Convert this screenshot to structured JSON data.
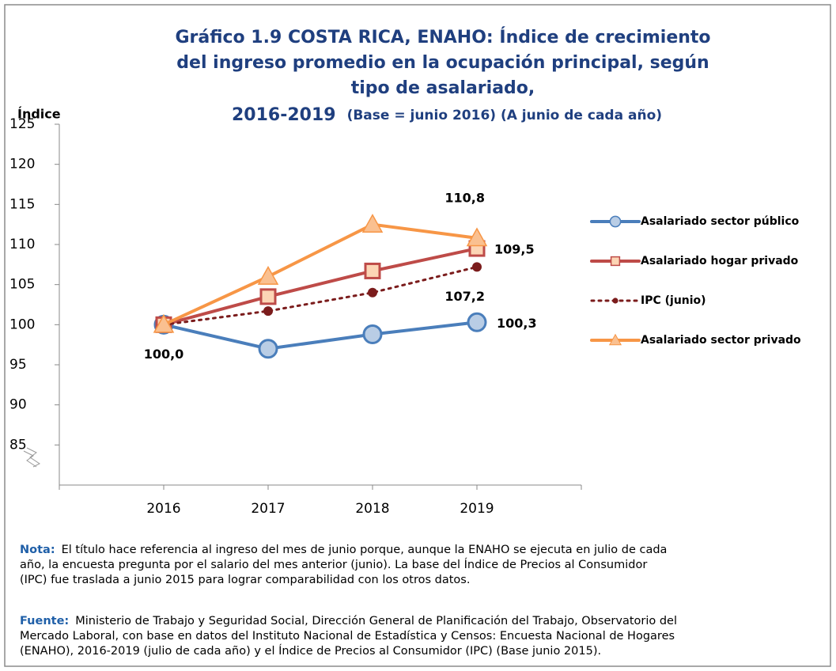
{
  "chart_data": {
    "type": "line",
    "title": [
      "Gráfico 1.9  COSTA RICA, ENAHO:  Índice de crecimiento",
      "del ingreso promedio en la ocupación principal,  según",
      "tipo de asalariado,",
      "2016-2019"
    ],
    "subtitle": "(Base = junio 2016)  (A junio de cada año)",
    "y_label": "Índice",
    "categories": [
      "2016",
      "2017",
      "2018",
      "2019"
    ],
    "ylim": [
      80,
      125
    ],
    "yticks": [
      85,
      90,
      95,
      100,
      105,
      110,
      115,
      120,
      125
    ],
    "series": [
      {
        "name": "Asalariado sector público",
        "color": "#4a7ebb",
        "marker": "circle",
        "marker_fill": "#b9cde5",
        "dash": false,
        "values": [
          100.0,
          97.0,
          98.8,
          100.3
        ],
        "value_labels": [
          "100,0",
          null,
          null,
          "100,3"
        ]
      },
      {
        "name": "Asalariado hogar privado",
        "color": "#be4b48",
        "marker": "square",
        "marker_fill": "#fcd5b5",
        "dash": false,
        "values": [
          100.0,
          103.5,
          106.7,
          109.5
        ],
        "value_labels": [
          null,
          null,
          null,
          "109,5"
        ]
      },
      {
        "name": "IPC (junio)",
        "color": "#7b1c1c",
        "marker": "dot",
        "marker_fill": "#7b1c1c",
        "dash": true,
        "values": [
          100.0,
          101.7,
          104.0,
          107.2
        ],
        "value_labels": [
          null,
          null,
          null,
          "107,2"
        ]
      },
      {
        "name": "Asalariado sector privado",
        "color": "#f79646",
        "marker": "triangle",
        "marker_fill": "#fac090",
        "dash": false,
        "values": [
          100.0,
          106.0,
          112.5,
          110.8
        ],
        "value_labels": [
          null,
          null,
          null,
          "110,8"
        ]
      }
    ]
  },
  "notes": [
    {
      "label": "Nota:",
      "lines": [
        "El título hace referencia al ingreso del mes de junio porque, aunque la ENAHO se ejecuta en julio de cada",
        "año, la encuesta pregunta por el salario del mes anterior (junio).  La base del Índice de Precios al Consumidor",
        "(IPC) fue traslada a junio 2015 para lograr comparabilidad con los otros datos."
      ]
    },
    {
      "label": "Fuente:",
      "lines": [
        "Ministerio de Trabajo y Seguridad Social, Dirección General de Planificación del Trabajo, Observatorio del",
        "Mercado Laboral, con base en datos del Instituto Nacional de Estadística y Censos:  Encuesta Nacional de Hogares",
        "(ENAHO), 2016-2019 (julio de cada año) y el Índice de Precios al Consumidor (IPC) (Base junio 2015)."
      ]
    }
  ]
}
